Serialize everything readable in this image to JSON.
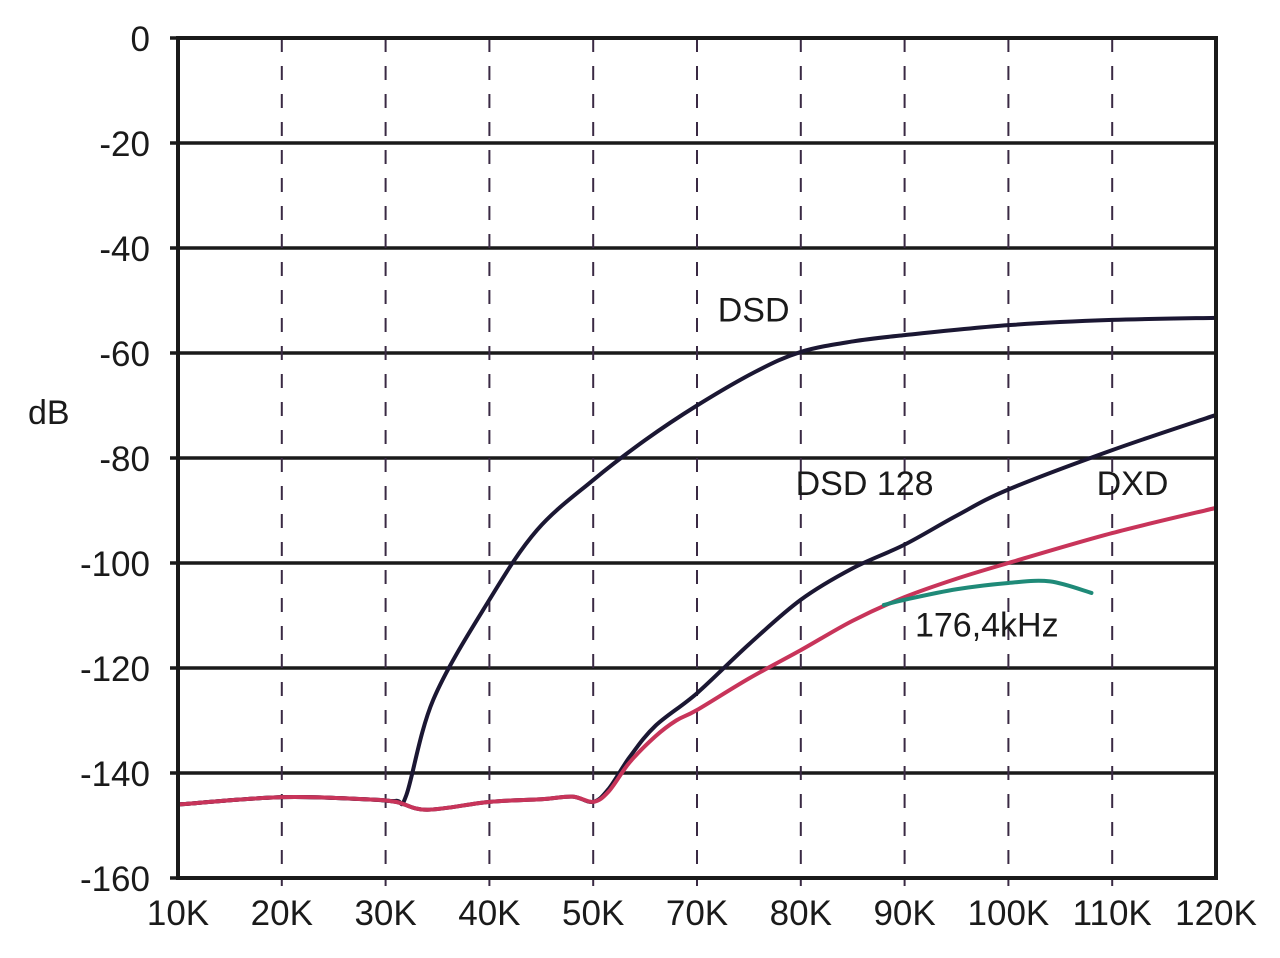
{
  "chart_data": {
    "type": "line",
    "title": "",
    "xlabel": "",
    "ylabel": "dB",
    "x_ticks": [
      "10K",
      "20K",
      "30K",
      "40K",
      "50K",
      "70K",
      "80K",
      "90K",
      "100K",
      "110K",
      "120K"
    ],
    "x_tick_values": [
      10,
      20,
      30,
      40,
      50,
      70,
      80,
      90,
      100,
      110,
      120
    ],
    "y_ticks": [
      "0",
      "-20",
      "-40",
      "-60",
      "-80",
      "-100",
      "-120",
      "-140",
      "-160"
    ],
    "y_tick_values": [
      0,
      -20,
      -40,
      -60,
      -80,
      -100,
      -120,
      -140,
      -160
    ],
    "ylim": [
      -160,
      0
    ],
    "xlim": [
      10,
      120
    ],
    "grid": {
      "horizontal": "solid",
      "vertical": "dashed"
    },
    "series": [
      {
        "name": "DSD",
        "color": "#1b1733",
        "points": [
          [
            10,
            -146
          ],
          [
            20,
            -144.6
          ],
          [
            28,
            -145
          ],
          [
            31,
            -145.3
          ],
          [
            32,
            -144.2
          ],
          [
            34.6,
            -126
          ],
          [
            40,
            -107
          ],
          [
            44.6,
            -93.7
          ],
          [
            50,
            -84.2
          ],
          [
            60,
            -76.6
          ],
          [
            70,
            -70
          ],
          [
            75.6,
            -63.6
          ],
          [
            80,
            -59.8
          ],
          [
            85,
            -57.8
          ],
          [
            90,
            -56.6
          ],
          [
            100,
            -54.7
          ],
          [
            110,
            -53.7
          ],
          [
            120,
            -53.3
          ]
        ]
      },
      {
        "name": "DSD 128",
        "color": "#1b1733",
        "points": [
          [
            10,
            -146
          ],
          [
            20,
            -144.6
          ],
          [
            28,
            -145
          ],
          [
            31,
            -145.5
          ],
          [
            34,
            -147
          ],
          [
            40,
            -145.5
          ],
          [
            45,
            -145
          ],
          [
            48,
            -144.5
          ],
          [
            50,
            -145.5
          ],
          [
            53,
            -143
          ],
          [
            57,
            -137
          ],
          [
            62,
            -131
          ],
          [
            70,
            -124.8
          ],
          [
            75,
            -115.5
          ],
          [
            80,
            -107
          ],
          [
            85,
            -101
          ],
          [
            90,
            -96.5
          ],
          [
            95,
            -91
          ],
          [
            100,
            -86
          ],
          [
            110,
            -78.5
          ],
          [
            120,
            -71.8
          ]
        ]
      },
      {
        "name": "DXD",
        "color": "#c8345a",
        "points": [
          [
            10,
            -146
          ],
          [
            20,
            -144.6
          ],
          [
            28,
            -145
          ],
          [
            31,
            -145.5
          ],
          [
            34,
            -147
          ],
          [
            40,
            -145.5
          ],
          [
            45,
            -145
          ],
          [
            48,
            -144.5
          ],
          [
            50,
            -145.5
          ],
          [
            53,
            -143.5
          ],
          [
            57,
            -138
          ],
          [
            62,
            -133
          ],
          [
            66,
            -130
          ],
          [
            70,
            -128
          ],
          [
            75,
            -122
          ],
          [
            80,
            -116.6
          ],
          [
            85,
            -111
          ],
          [
            90,
            -106.5
          ],
          [
            95,
            -103
          ],
          [
            100,
            -100
          ],
          [
            110,
            -94.3
          ],
          [
            120,
            -89.5
          ]
        ]
      },
      {
        "name": "176,4kHz",
        "color": "#1f8a78",
        "points": [
          [
            88,
            -108
          ],
          [
            90,
            -107
          ],
          [
            95,
            -105
          ],
          [
            100,
            -103.8
          ],
          [
            104,
            -103.5
          ],
          [
            108,
            -105.7
          ]
        ]
      }
    ],
    "annotations": [
      {
        "text": "DSD",
        "x": 72,
        "y": -54
      },
      {
        "text": "DSD 128",
        "x": 79.5,
        "y": -87
      },
      {
        "text": "DXD",
        "x": 108.5,
        "y": -87
      },
      {
        "text": "176,4kHz",
        "x": 91,
        "y": -114
      }
    ]
  }
}
